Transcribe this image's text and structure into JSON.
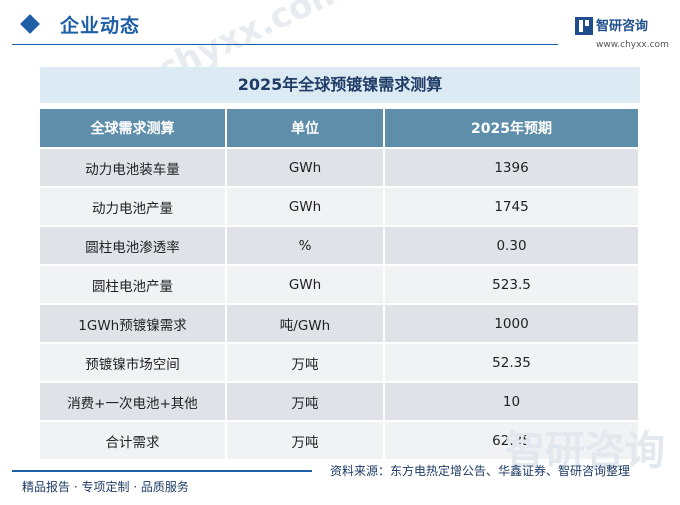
{
  "header": {
    "title": "企业动态",
    "watermark": "chyxx.com"
  },
  "logo": {
    "name": "智研咨询",
    "url": "www.chyxx.com"
  },
  "table": {
    "title": "2025年全球预镀镍需求测算",
    "columns": [
      "全球需求测算",
      "单位",
      "2025年预期"
    ],
    "rows": [
      [
        "动力电池装车量",
        "GWh",
        "1396"
      ],
      [
        "动力电池产量",
        "GWh",
        "1745"
      ],
      [
        "圆柱电池渗透率",
        "%",
        "0.30"
      ],
      [
        "圆柱电池产量",
        "GWh",
        "523.5"
      ],
      [
        "1GWh预镀镍需求",
        "吨/GWh",
        "1000"
      ],
      [
        "预镀镍市场空间",
        "万吨",
        "52.35"
      ],
      [
        "消费+一次电池+其他",
        "万吨",
        "10"
      ],
      [
        "合计需求",
        "万吨",
        "62.35"
      ]
    ]
  },
  "footer": {
    "left": "精品报告 · 专项定制 · 品质服务",
    "source": "资料来源：东方电热定增公告、华鑫证券、智研咨询整理",
    "logo_text": "智研咨询"
  },
  "colors": {
    "brand": "#1f5fa8",
    "header_row": "#5f8eaa",
    "row_dark": "#dfe3e8",
    "row_light": "#f0f2f4",
    "title_bg": "#dceaf3"
  }
}
